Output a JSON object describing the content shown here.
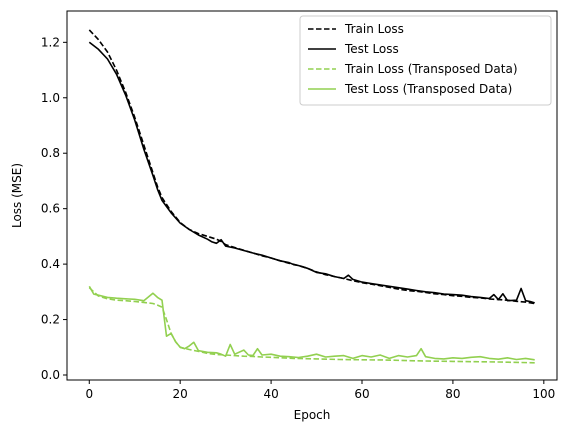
{
  "chart_data": {
    "type": "line",
    "title": "",
    "xlabel": "Epoch",
    "ylabel": "Loss (MSE)",
    "xlim": [
      -4.9,
      102.9
    ],
    "ylim": [
      -0.018,
      1.313
    ],
    "xticks": [
      0,
      20,
      40,
      60,
      80,
      100
    ],
    "yticks": [
      0.0,
      0.2,
      0.4,
      0.6,
      0.8,
      1.0,
      1.2
    ],
    "grid": false,
    "legend_position": "top-right",
    "series": [
      {
        "name": "Train Loss",
        "color": "#000000",
        "dash": "dashed",
        "x": [
          0,
          2,
          4,
          6,
          8,
          10,
          12,
          14,
          15,
          16,
          18,
          20,
          22,
          24,
          26,
          28,
          29,
          30,
          32,
          34,
          36,
          38,
          40,
          42,
          44,
          46,
          48,
          50,
          52,
          54,
          56,
          58,
          60,
          62,
          64,
          66,
          68,
          70,
          72,
          74,
          76,
          78,
          80,
          82,
          84,
          86,
          88,
          90,
          92,
          94,
          96,
          98
        ],
        "y": [
          1.245,
          1.21,
          1.165,
          1.1,
          1.02,
          0.93,
          0.83,
          0.73,
          0.68,
          0.64,
          0.59,
          0.55,
          0.525,
          0.51,
          0.5,
          0.49,
          0.482,
          0.47,
          0.46,
          0.45,
          0.44,
          0.43,
          0.422,
          0.412,
          0.403,
          0.395,
          0.385,
          0.372,
          0.362,
          0.355,
          0.348,
          0.34,
          0.333,
          0.328,
          0.322,
          0.316,
          0.31,
          0.305,
          0.302,
          0.298,
          0.293,
          0.29,
          0.286,
          0.284,
          0.28,
          0.278,
          0.274,
          0.272,
          0.27,
          0.266,
          0.263,
          0.258
        ]
      },
      {
        "name": "Test Loss",
        "color": "#000000",
        "dash": "solid",
        "x": [
          0,
          2,
          4,
          6,
          8,
          10,
          12,
          14,
          15,
          16,
          18,
          20,
          22,
          24,
          26,
          27,
          28,
          29,
          30,
          32,
          34,
          36,
          38,
          40,
          42,
          44,
          45,
          46,
          48,
          50,
          52,
          54,
          56,
          57,
          58,
          60,
          62,
          64,
          66,
          68,
          70,
          72,
          74,
          76,
          78,
          80,
          82,
          84,
          86,
          88,
          89,
          90,
          91,
          92,
          94,
          95,
          96,
          97,
          98
        ],
        "y": [
          1.2,
          1.175,
          1.14,
          1.085,
          1.01,
          0.92,
          0.815,
          0.72,
          0.67,
          0.63,
          0.585,
          0.548,
          0.525,
          0.505,
          0.49,
          0.48,
          0.475,
          0.488,
          0.465,
          0.458,
          0.449,
          0.44,
          0.432,
          0.422,
          0.412,
          0.405,
          0.398,
          0.395,
          0.385,
          0.37,
          0.365,
          0.355,
          0.348,
          0.36,
          0.345,
          0.335,
          0.33,
          0.325,
          0.32,
          0.315,
          0.31,
          0.305,
          0.3,
          0.297,
          0.292,
          0.29,
          0.288,
          0.283,
          0.28,
          0.276,
          0.29,
          0.272,
          0.293,
          0.268,
          0.27,
          0.312,
          0.268,
          0.265,
          0.26
        ]
      },
      {
        "name": "Train Loss (Transposed Data)",
        "color": "#92d050",
        "dash": "dashed",
        "x": [
          0,
          2,
          4,
          6,
          8,
          10,
          12,
          14,
          15,
          16,
          17,
          18,
          19,
          20,
          22,
          24,
          26,
          28,
          30,
          32,
          34,
          36,
          38,
          40,
          45,
          50,
          55,
          60,
          65,
          70,
          75,
          80,
          85,
          90,
          95,
          98
        ],
        "y": [
          0.315,
          0.285,
          0.275,
          0.27,
          0.268,
          0.265,
          0.262,
          0.258,
          0.252,
          0.245,
          0.2,
          0.15,
          0.12,
          0.1,
          0.092,
          0.085,
          0.078,
          0.074,
          0.072,
          0.07,
          0.068,
          0.067,
          0.065,
          0.064,
          0.06,
          0.058,
          0.056,
          0.055,
          0.054,
          0.052,
          0.05,
          0.049,
          0.048,
          0.047,
          0.045,
          0.044
        ]
      },
      {
        "name": "Test Loss (Transposed Data)",
        "color": "#92d050",
        "dash": "solid",
        "x": [
          0,
          1,
          2,
          4,
          6,
          8,
          10,
          12,
          14,
          15,
          16,
          17,
          18,
          19,
          20,
          21,
          22,
          23,
          24,
          26,
          28,
          29,
          30,
          31,
          32,
          34,
          35,
          36,
          37,
          38,
          40,
          42,
          44,
          46,
          48,
          50,
          52,
          54,
          56,
          58,
          60,
          62,
          64,
          66,
          68,
          70,
          72,
          73,
          74,
          76,
          78,
          80,
          82,
          84,
          86,
          88,
          90,
          92,
          94,
          96,
          98
        ],
        "y": [
          0.32,
          0.292,
          0.288,
          0.28,
          0.277,
          0.275,
          0.273,
          0.268,
          0.295,
          0.28,
          0.27,
          0.14,
          0.15,
          0.12,
          0.1,
          0.095,
          0.105,
          0.118,
          0.088,
          0.082,
          0.08,
          0.075,
          0.068,
          0.11,
          0.075,
          0.09,
          0.072,
          0.07,
          0.095,
          0.072,
          0.075,
          0.068,
          0.066,
          0.063,
          0.068,
          0.075,
          0.065,
          0.068,
          0.07,
          0.06,
          0.07,
          0.065,
          0.072,
          0.06,
          0.07,
          0.065,
          0.07,
          0.095,
          0.066,
          0.06,
          0.058,
          0.062,
          0.06,
          0.064,
          0.066,
          0.06,
          0.057,
          0.062,
          0.056,
          0.06,
          0.055
        ]
      }
    ]
  }
}
